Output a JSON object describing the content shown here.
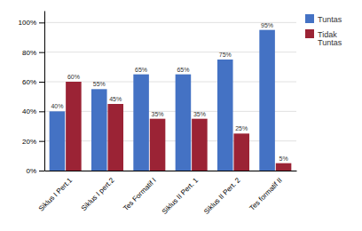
{
  "chart_data": {
    "type": "bar",
    "categories": [
      "Siklus I Pert.1",
      "Siklus I pert.2",
      "Tes Formatif I",
      "Siklus II Pert. 1",
      "Siklus II Pert. 2",
      "Tes formatif II"
    ],
    "series": [
      {
        "name": "Tuntas",
        "color": "#4472C4",
        "values": [
          40,
          55,
          65,
          65,
          75,
          95
        ],
        "value_labels": [
          "40%",
          "55%",
          "65%",
          "65%",
          "75%",
          "95%"
        ]
      },
      {
        "name": "Tidak\nTuntas",
        "color": "#9B2335",
        "values": [
          60,
          45,
          35,
          35,
          25,
          5
        ],
        "value_labels": [
          "60%",
          "45%",
          "35%",
          "35%",
          "25%",
          "5%"
        ]
      }
    ],
    "ylim": [
      0,
      108
    ],
    "yticks": [
      {
        "value": 0,
        "label": "0%"
      },
      {
        "value": 20,
        "label": "20%"
      },
      {
        "value": 40,
        "label": "40%"
      },
      {
        "value": 60,
        "label": "60%"
      },
      {
        "value": 80,
        "label": "80%"
      },
      {
        "value": 100,
        "label": "100%"
      }
    ],
    "grid": true,
    "legend": "upper right",
    "data_labels": true
  }
}
